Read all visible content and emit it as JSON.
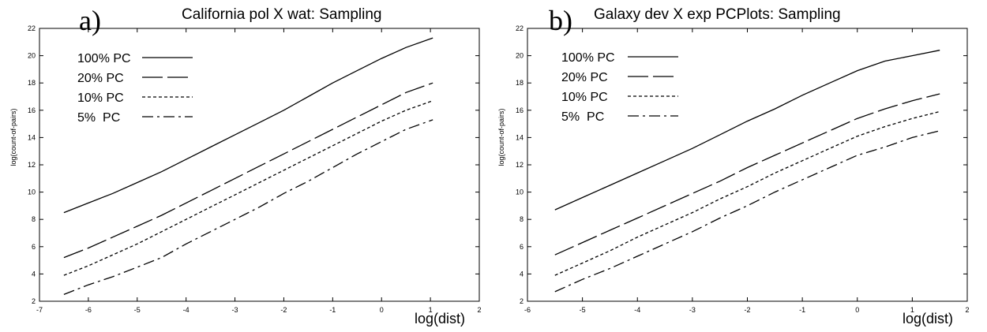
{
  "chart_data": [
    {
      "type": "line",
      "panel_label": "a)",
      "title": "California pol X wat: Sampling",
      "xlabel": "log(dist)",
      "ylabel": "log(count-of-pairs)",
      "xlim": [
        -7,
        2
      ],
      "ylim": [
        2,
        22
      ],
      "xticks": [
        -7,
        -6,
        -5,
        -4,
        -3,
        -2,
        -1,
        0,
        1,
        2
      ],
      "yticks": [
        2,
        4,
        6,
        8,
        10,
        12,
        14,
        16,
        18,
        20,
        22
      ],
      "grid": false,
      "legend_position": "top-left",
      "series": [
        {
          "name": "100% PC",
          "style": "solid",
          "x": [
            -6.5,
            -6,
            -5.5,
            -5,
            -4.5,
            -4,
            -3.5,
            -3,
            -2.5,
            -2,
            -1.5,
            -1,
            -0.5,
            0,
            0.5,
            1.05
          ],
          "y": [
            8.5,
            9.2,
            9.9,
            10.7,
            11.5,
            12.4,
            13.3,
            14.2,
            15.1,
            16.0,
            17.0,
            18.0,
            18.9,
            19.8,
            20.6,
            21.3
          ]
        },
        {
          "name": "20% PC",
          "style": "long-dash",
          "x": [
            -6.5,
            -6,
            -5.5,
            -5,
            -4.5,
            -4,
            -3.5,
            -3,
            -2.5,
            -2,
            -1.5,
            -1,
            -0.5,
            0,
            0.5,
            1.05
          ],
          "y": [
            5.2,
            5.9,
            6.7,
            7.5,
            8.3,
            9.2,
            10.1,
            11.0,
            11.9,
            12.8,
            13.7,
            14.6,
            15.5,
            16.4,
            17.3,
            18.0
          ]
        },
        {
          "name": "10% PC",
          "style": "short-dash",
          "x": [
            -6.5,
            -6,
            -5.5,
            -5,
            -4.5,
            -4,
            -3.5,
            -3,
            -2.5,
            -2,
            -1.5,
            -1,
            -0.5,
            0,
            0.5,
            1.05
          ],
          "y": [
            3.9,
            4.6,
            5.4,
            6.2,
            7.1,
            8.0,
            8.9,
            9.8,
            10.7,
            11.6,
            12.5,
            13.4,
            14.3,
            15.2,
            16.0,
            16.7
          ]
        },
        {
          "name": "5%  PC",
          "style": "dash-dot",
          "x": [
            -6.5,
            -6,
            -5.5,
            -5,
            -4.5,
            -4,
            -3.5,
            -3,
            -2.5,
            -2,
            -1.5,
            -1,
            -0.5,
            0,
            0.5,
            1.05
          ],
          "y": [
            2.5,
            3.2,
            3.8,
            4.5,
            5.2,
            6.2,
            7.1,
            8.0,
            8.9,
            9.9,
            10.8,
            11.8,
            12.8,
            13.7,
            14.6,
            15.3
          ]
        }
      ]
    },
    {
      "type": "line",
      "panel_label": "b)",
      "title": "Galaxy dev X exp PCPlots: Sampling",
      "xlabel": "log(dist)",
      "ylabel": "log(count-of-pairs)",
      "xlim": [
        -6,
        2
      ],
      "ylim": [
        2,
        22
      ],
      "xticks": [
        -6,
        -5,
        -4,
        -3,
        -2,
        -1,
        0,
        1,
        2
      ],
      "yticks": [
        2,
        4,
        6,
        8,
        10,
        12,
        14,
        16,
        18,
        20,
        22
      ],
      "grid": false,
      "legend_position": "top-left",
      "series": [
        {
          "name": "100% PC",
          "style": "solid",
          "x": [
            -5.5,
            -5,
            -4.5,
            -4,
            -3.5,
            -3,
            -2.5,
            -2,
            -1.5,
            -1,
            -0.5,
            0,
            0.5,
            1,
            1.5
          ],
          "y": [
            8.7,
            9.6,
            10.5,
            11.4,
            12.3,
            13.2,
            14.2,
            15.2,
            16.1,
            17.1,
            18.0,
            18.9,
            19.6,
            20.0,
            20.4
          ]
        },
        {
          "name": "20% PC",
          "style": "long-dash",
          "x": [
            -5.5,
            -5,
            -4.5,
            -4,
            -3.5,
            -3,
            -2.5,
            -2,
            -1.5,
            -1,
            -0.5,
            0,
            0.5,
            1,
            1.5
          ],
          "y": [
            5.4,
            6.3,
            7.2,
            8.1,
            9.0,
            9.9,
            10.8,
            11.8,
            12.7,
            13.6,
            14.5,
            15.4,
            16.1,
            16.7,
            17.2
          ]
        },
        {
          "name": "10% PC",
          "style": "short-dash",
          "x": [
            -5.5,
            -5,
            -4.5,
            -4,
            -3.5,
            -3,
            -2.5,
            -2,
            -1.5,
            -1,
            -0.5,
            0,
            0.5,
            1,
            1.5
          ],
          "y": [
            3.9,
            4.8,
            5.7,
            6.7,
            7.6,
            8.5,
            9.5,
            10.4,
            11.4,
            12.3,
            13.2,
            14.1,
            14.8,
            15.4,
            15.9
          ]
        },
        {
          "name": "5%  PC",
          "style": "dash-dot",
          "x": [
            -5.5,
            -5,
            -4.5,
            -4,
            -3.5,
            -3,
            -2.5,
            -2,
            -1.5,
            -1,
            -0.5,
            0,
            0.5,
            1,
            1.5
          ],
          "y": [
            2.7,
            3.6,
            4.4,
            5.3,
            6.2,
            7.1,
            8.1,
            9.0,
            10.0,
            10.9,
            11.8,
            12.7,
            13.3,
            14.0,
            14.5
          ]
        }
      ]
    }
  ]
}
